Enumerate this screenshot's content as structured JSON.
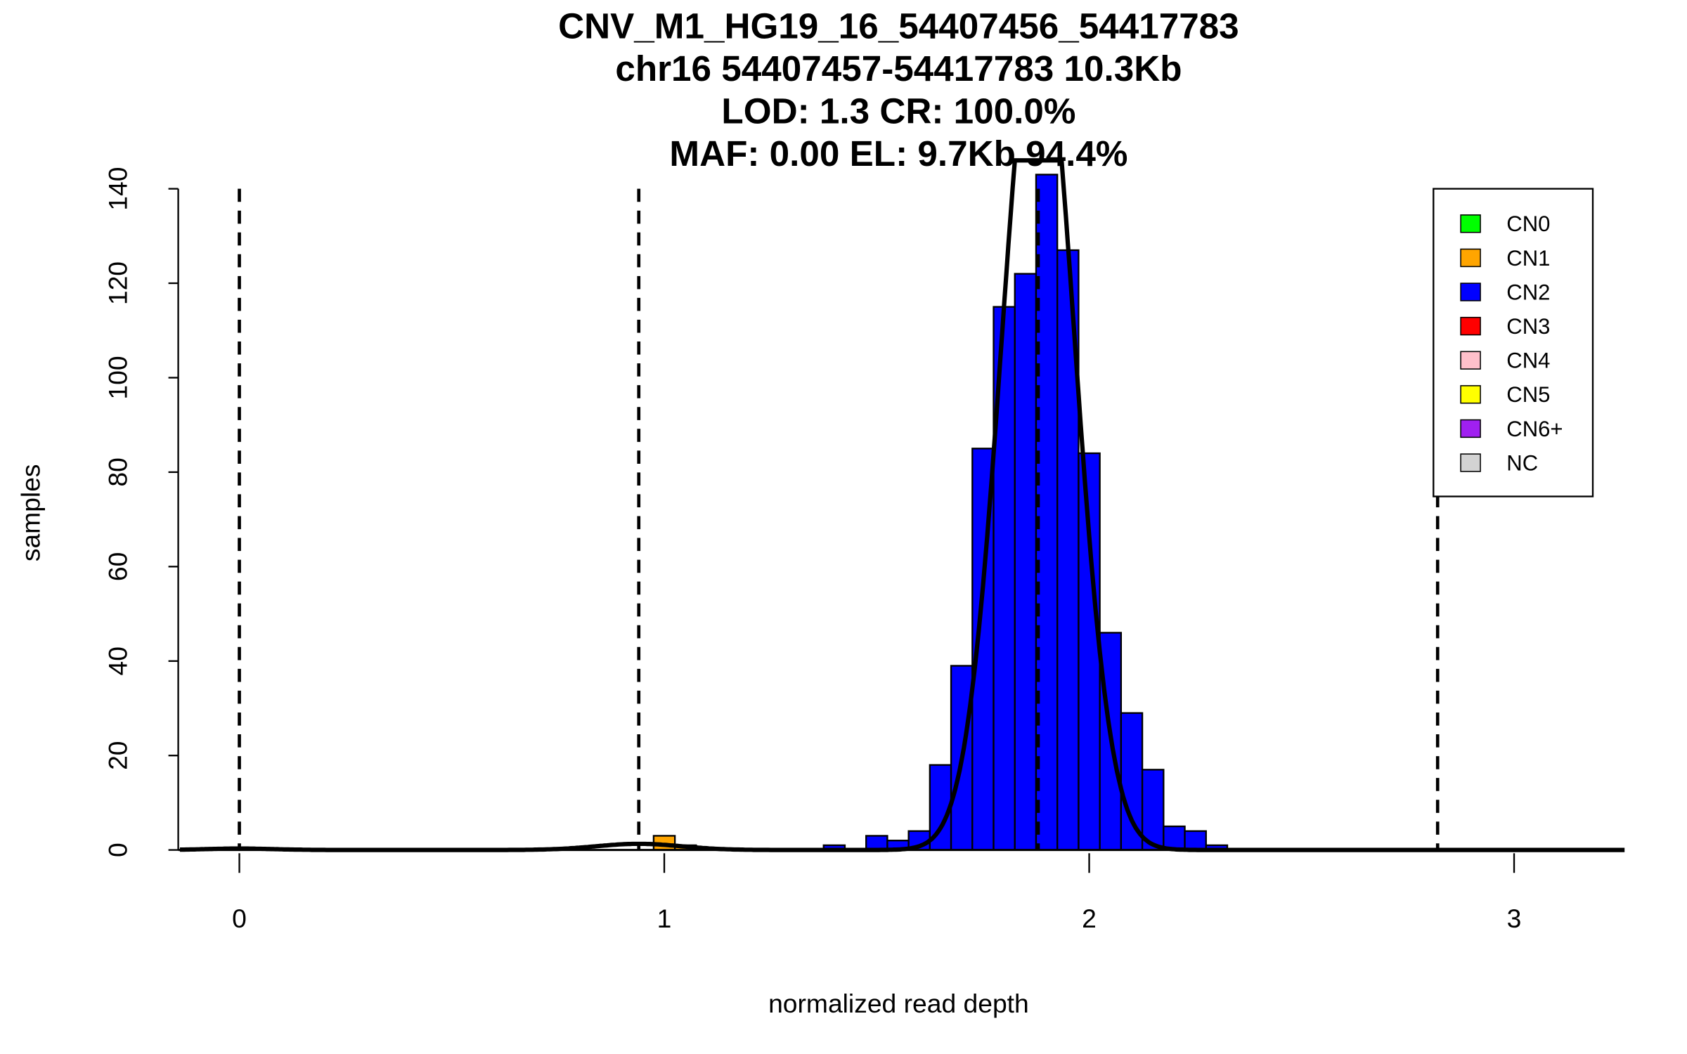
{
  "chart_data": {
    "type": "bar",
    "title_lines": [
      "CNV_M1_HG19_16_54407456_54417783",
      "chr16 54407457-54417783 10.3Kb",
      "LOD: 1.3 CR: 100.0%",
      "MAF: 0.00 EL: 9.7Kb 94.4%"
    ],
    "xlabel": "normalized read depth",
    "ylabel": "samples",
    "xlim": [
      -0.14,
      3.26
    ],
    "ylim": [
      0,
      140
    ],
    "x_ticks": [
      0,
      1,
      2,
      3
    ],
    "x_tick_labels": [
      "0",
      "1",
      "2",
      "3"
    ],
    "y_ticks": [
      0,
      20,
      40,
      60,
      80,
      100,
      120,
      140
    ],
    "y_tick_labels": [
      "0",
      "20",
      "40",
      "60",
      "80",
      "100",
      "120",
      "140"
    ],
    "bin_width": 0.05,
    "bins": [
      {
        "start": 0.975,
        "value": 3,
        "class": "CN1"
      },
      {
        "start": 1.025,
        "value": 1,
        "class": "CN1"
      },
      {
        "start": 1.375,
        "value": 1,
        "class": "CN2"
      },
      {
        "start": 1.475,
        "value": 3,
        "class": "CN2"
      },
      {
        "start": 1.525,
        "value": 2,
        "class": "CN2"
      },
      {
        "start": 1.575,
        "value": 4,
        "class": "CN2"
      },
      {
        "start": 1.625,
        "value": 18,
        "class": "CN2"
      },
      {
        "start": 1.675,
        "value": 39,
        "class": "CN2"
      },
      {
        "start": 1.725,
        "value": 85,
        "class": "CN2"
      },
      {
        "start": 1.775,
        "value": 115,
        "class": "CN2"
      },
      {
        "start": 1.825,
        "value": 122,
        "class": "CN2"
      },
      {
        "start": 1.875,
        "value": 143,
        "class": "CN2"
      },
      {
        "start": 1.925,
        "value": 127,
        "class": "CN2"
      },
      {
        "start": 1.975,
        "value": 84,
        "class": "CN2"
      },
      {
        "start": 2.025,
        "value": 46,
        "class": "CN2"
      },
      {
        "start": 2.075,
        "value": 29,
        "class": "CN2"
      },
      {
        "start": 2.125,
        "value": 17,
        "class": "CN2"
      },
      {
        "start": 2.175,
        "value": 5,
        "class": "CN2"
      },
      {
        "start": 2.225,
        "value": 4,
        "class": "CN2"
      },
      {
        "start": 2.275,
        "value": 1,
        "class": "CN2"
      }
    ],
    "dashed_lines_x": [
      0,
      0.94,
      1.88,
      2.82
    ],
    "fit_components": [
      {
        "mean": 0.0,
        "sd": 0.08,
        "peak": 0.3
      },
      {
        "mean": 0.94,
        "sd": 0.1,
        "peak": 1.3
      },
      {
        "mean": 1.88,
        "sd": 0.085,
        "peak": 180
      }
    ],
    "legend": {
      "placement": "top-right",
      "entries": [
        {
          "label": "CN0",
          "color": "#00ff00"
        },
        {
          "label": "CN1",
          "color": "#ffa500"
        },
        {
          "label": "CN2",
          "color": "#0000ff"
        },
        {
          "label": "CN3",
          "color": "#ff0000"
        },
        {
          "label": "CN4",
          "color": "#ffc0cb"
        },
        {
          "label": "CN5",
          "color": "#ffff00"
        },
        {
          "label": "CN6+",
          "color": "#a020f0"
        },
        {
          "label": "NC",
          "color": "#d3d3d3"
        }
      ]
    }
  }
}
